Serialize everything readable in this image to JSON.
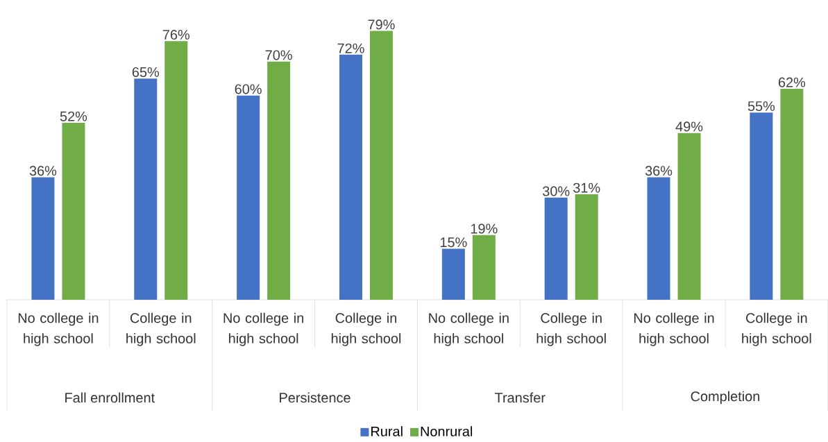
{
  "chart_data": {
    "type": "bar",
    "categories": [
      "No college in high school",
      "College in high school",
      "No college in high school",
      "College in high school",
      "No college in high school",
      "College in high school",
      "No college in high school",
      "College in high school"
    ],
    "series": [
      {
        "name": "Rural",
        "color": "#4472c4",
        "values": [
          36,
          65,
          60,
          72,
          15,
          30,
          36,
          55
        ],
        "value_labels": [
          "36%",
          "65%",
          "60%",
          "72%",
          "15%",
          "30%",
          "36%",
          "55%"
        ]
      },
      {
        "name": "Nonrural",
        "color": "#70ad47",
        "values": [
          52,
          76,
          70,
          79,
          19,
          31,
          49,
          62
        ],
        "value_labels": [
          "52%",
          "76%",
          "70%",
          "79%",
          "19%",
          "31%",
          "49%",
          "62%"
        ]
      }
    ],
    "annotations": [
      "Fall enrollment",
      "Persistence",
      "Transfer",
      "Completion"
    ],
    "legend": "bottom"
  }
}
